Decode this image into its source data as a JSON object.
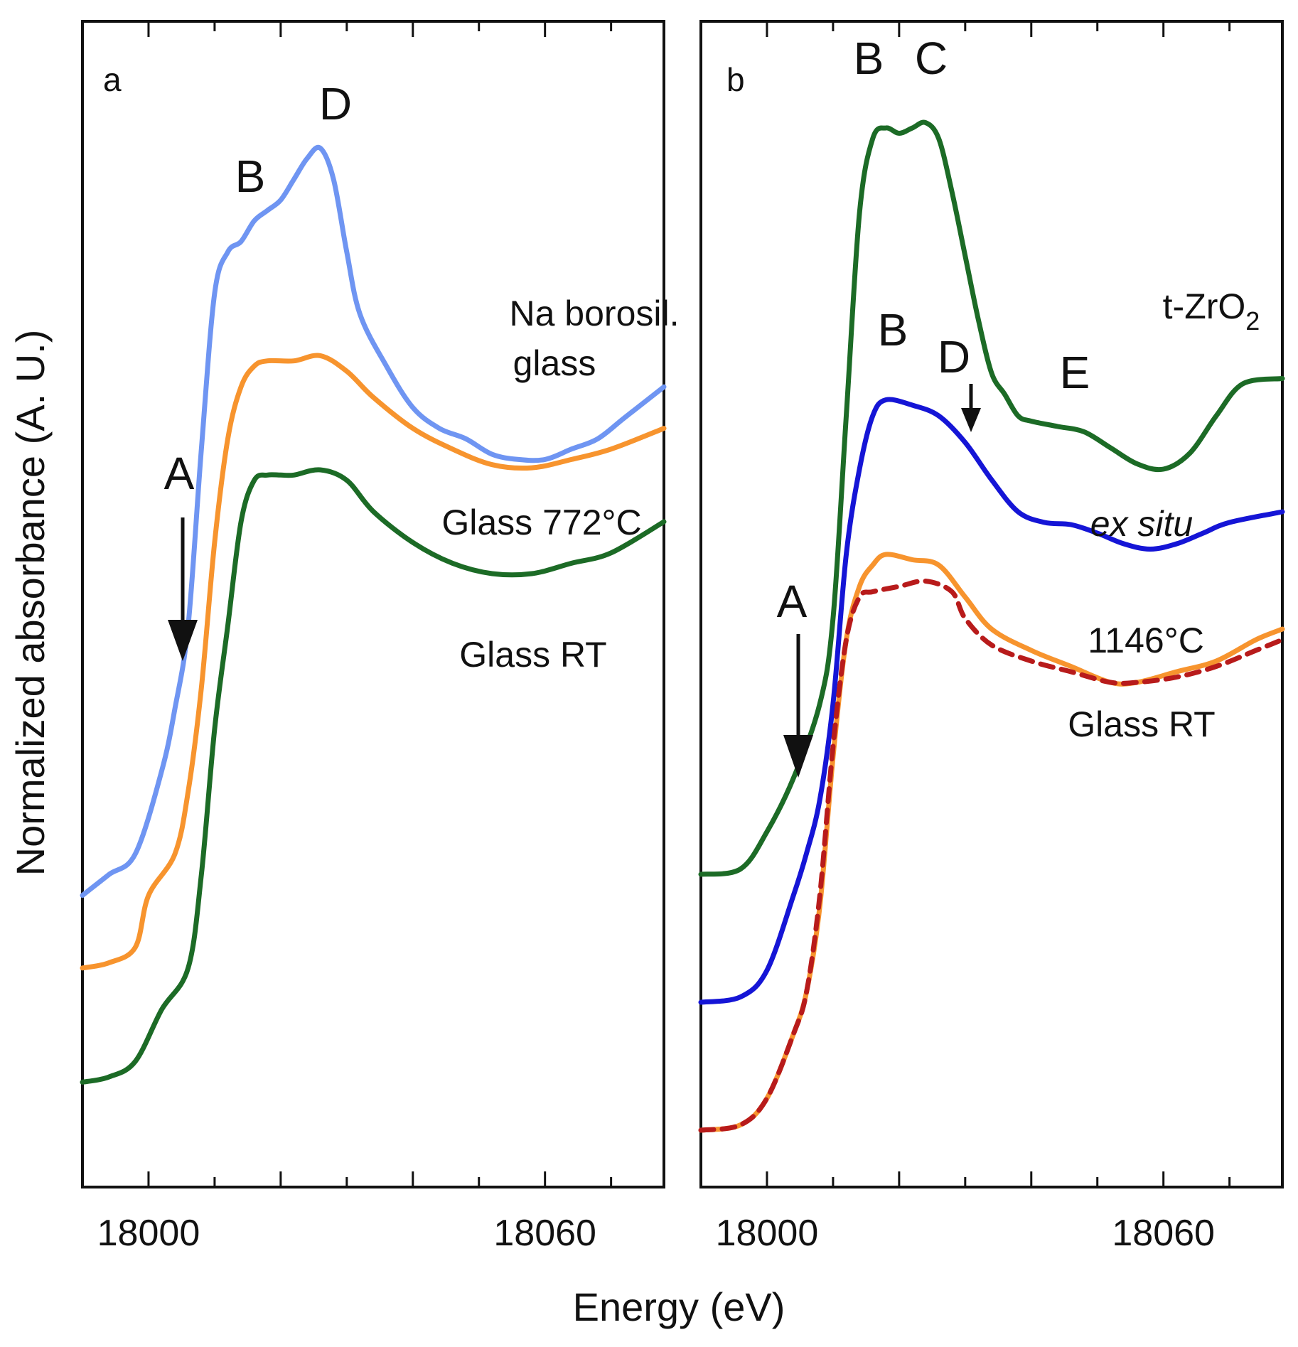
{
  "ylabel": "Normalized absorbance (A. U.)",
  "xlabel": "Energy (eV)",
  "colors": {
    "light_blue": "#6f95f2",
    "orange": "#f7942e",
    "dark_green": "#1c6b26",
    "blue": "#1515d6",
    "dashed_red": "#b81b1b"
  },
  "chart_data": [
    {
      "type": "line",
      "panel": "a",
      "title": "",
      "xlabel": "Energy (eV)",
      "ylabel": "Normalized absorbance (A. U.)",
      "xlim": [
        17990,
        18078
      ],
      "ylim": [
        0,
        1
      ],
      "xticks": [
        18000,
        18060
      ],
      "minor_tick_step": 10,
      "series": [
        {
          "name": "Na borosil. glass",
          "color": "#6f95f2",
          "style": "solid",
          "points": [
            [
              17990,
              0.24
            ],
            [
              17994,
              0.26
            ],
            [
              17998,
              0.28
            ],
            [
              18002,
              0.36
            ],
            [
              18004,
              0.42
            ],
            [
              18006,
              0.5
            ],
            [
              18008,
              0.67
            ],
            [
              18010,
              0.82
            ],
            [
              18012,
              0.86
            ],
            [
              18014,
              0.87
            ],
            [
              18016,
              0.89
            ],
            [
              18018,
              0.9
            ],
            [
              18020,
              0.91
            ],
            [
              18022,
              0.93
            ],
            [
              18024,
              0.95
            ],
            [
              18026,
              0.96
            ],
            [
              18028,
              0.93
            ],
            [
              18030,
              0.86
            ],
            [
              18032,
              0.8
            ],
            [
              18036,
              0.75
            ],
            [
              18040,
              0.71
            ],
            [
              18044,
              0.69
            ],
            [
              18048,
              0.68
            ],
            [
              18052,
              0.665
            ],
            [
              18056,
              0.66
            ],
            [
              18060,
              0.66
            ],
            [
              18064,
              0.67
            ],
            [
              18068,
              0.68
            ],
            [
              18072,
              0.7
            ],
            [
              18078,
              0.73
            ]
          ]
        },
        {
          "name": "Glass 772°C",
          "color": "#f7942e",
          "style": "solid",
          "points": [
            [
              17990,
              0.17
            ],
            [
              17994,
              0.175
            ],
            [
              17998,
              0.19
            ],
            [
              18000,
              0.24
            ],
            [
              18004,
              0.28
            ],
            [
              18006,
              0.34
            ],
            [
              18008,
              0.44
            ],
            [
              18010,
              0.58
            ],
            [
              18012,
              0.68
            ],
            [
              18014,
              0.73
            ],
            [
              18016,
              0.75
            ],
            [
              18018,
              0.755
            ],
            [
              18022,
              0.755
            ],
            [
              18026,
              0.76
            ],
            [
              18030,
              0.745
            ],
            [
              18034,
              0.72
            ],
            [
              18040,
              0.69
            ],
            [
              18046,
              0.67
            ],
            [
              18052,
              0.655
            ],
            [
              18058,
              0.652
            ],
            [
              18064,
              0.66
            ],
            [
              18070,
              0.67
            ],
            [
              18078,
              0.69
            ]
          ]
        },
        {
          "name": "Glass RT",
          "color": "#1c6b26",
          "style": "solid",
          "points": [
            [
              17990,
              0.06
            ],
            [
              17994,
              0.065
            ],
            [
              17998,
              0.08
            ],
            [
              18002,
              0.13
            ],
            [
              18006,
              0.17
            ],
            [
              18008,
              0.26
            ],
            [
              18010,
              0.4
            ],
            [
              18012,
              0.5
            ],
            [
              18014,
              0.6
            ],
            [
              18016,
              0.64
            ],
            [
              18018,
              0.645
            ],
            [
              18020,
              0.645
            ],
            [
              18022,
              0.645
            ],
            [
              18026,
              0.65
            ],
            [
              18030,
              0.64
            ],
            [
              18034,
              0.61
            ],
            [
              18040,
              0.58
            ],
            [
              18046,
              0.56
            ],
            [
              18052,
              0.55
            ],
            [
              18058,
              0.55
            ],
            [
              18064,
              0.56
            ],
            [
              18070,
              0.57
            ],
            [
              18078,
              0.6
            ]
          ]
        }
      ],
      "curve_labels": [
        {
          "text": "Na borosil.",
          "series": "Na borosil. glass"
        },
        {
          "text": "glass",
          "series": "Na borosil. glass"
        },
        {
          "text": "Glass 772°C",
          "series": "Glass 772°C"
        },
        {
          "text": "Glass RT",
          "series": "Glass RT"
        }
      ],
      "annotations": [
        {
          "text": "A",
          "energy": 18005,
          "kind": "arrow-down"
        },
        {
          "text": "B",
          "energy": 18015
        },
        {
          "text": "D",
          "energy": 18027
        }
      ]
    },
    {
      "type": "line",
      "panel": "b",
      "title": "",
      "xlabel": "Energy (eV)",
      "ylabel": "Normalized absorbance (A. U.)",
      "xlim": [
        17990,
        18078
      ],
      "ylim": [
        0,
        1
      ],
      "xticks": [
        18000,
        18060
      ],
      "minor_tick_step": 10,
      "series": [
        {
          "name": "t-ZrO2",
          "color": "#1c6b26",
          "style": "solid",
          "points": [
            [
              17990,
              0.26
            ],
            [
              17996,
              0.265
            ],
            [
              18000,
              0.3
            ],
            [
              18004,
              0.35
            ],
            [
              18008,
              0.42
            ],
            [
              18010,
              0.5
            ],
            [
              18012,
              0.69
            ],
            [
              18014,
              0.88
            ],
            [
              18016,
              0.95
            ],
            [
              18018,
              0.96
            ],
            [
              18020,
              0.955
            ],
            [
              18022,
              0.96
            ],
            [
              18024,
              0.965
            ],
            [
              18026,
              0.95
            ],
            [
              18028,
              0.9
            ],
            [
              18030,
              0.84
            ],
            [
              18032,
              0.78
            ],
            [
              18034,
              0.73
            ],
            [
              18036,
              0.71
            ],
            [
              18038,
              0.69
            ],
            [
              18040,
              0.685
            ],
            [
              18044,
              0.68
            ],
            [
              18048,
              0.675
            ],
            [
              18052,
              0.66
            ],
            [
              18056,
              0.645
            ],
            [
              18060,
              0.64
            ],
            [
              18064,
              0.655
            ],
            [
              18068,
              0.69
            ],
            [
              18072,
              0.72
            ],
            [
              18078,
              0.725
            ]
          ]
        },
        {
          "name": "ex situ",
          "color": "#1515d6",
          "style": "solid",
          "points": [
            [
              17990,
              0.14
            ],
            [
              17996,
              0.145
            ],
            [
              18000,
              0.17
            ],
            [
              18004,
              0.24
            ],
            [
              18006,
              0.28
            ],
            [
              18008,
              0.33
            ],
            [
              18010,
              0.42
            ],
            [
              18012,
              0.56
            ],
            [
              18014,
              0.64
            ],
            [
              18016,
              0.69
            ],
            [
              18018,
              0.705
            ],
            [
              18022,
              0.7
            ],
            [
              18026,
              0.69
            ],
            [
              18030,
              0.665
            ],
            [
              18034,
              0.63
            ],
            [
              18038,
              0.6
            ],
            [
              18042,
              0.59
            ],
            [
              18046,
              0.588
            ],
            [
              18050,
              0.58
            ],
            [
              18054,
              0.57
            ],
            [
              18058,
              0.565
            ],
            [
              18062,
              0.57
            ],
            [
              18066,
              0.58
            ],
            [
              18070,
              0.59
            ],
            [
              18078,
              0.6
            ]
          ]
        },
        {
          "name": "1146°C",
          "color": "#f7942e",
          "style": "solid",
          "points": [
            [
              17990,
              0.02
            ],
            [
              17996,
              0.025
            ],
            [
              18000,
              0.05
            ],
            [
              18004,
              0.11
            ],
            [
              18006,
              0.15
            ],
            [
              18008,
              0.23
            ],
            [
              18010,
              0.37
            ],
            [
              18012,
              0.48
            ],
            [
              18014,
              0.53
            ],
            [
              18016,
              0.55
            ],
            [
              18018,
              0.56
            ],
            [
              18022,
              0.555
            ],
            [
              18026,
              0.55
            ],
            [
              18030,
              0.52
            ],
            [
              18034,
              0.49
            ],
            [
              18040,
              0.47
            ],
            [
              18046,
              0.455
            ],
            [
              18052,
              0.44
            ],
            [
              18056,
              0.44
            ],
            [
              18062,
              0.45
            ],
            [
              18068,
              0.46
            ],
            [
              18074,
              0.48
            ],
            [
              18078,
              0.49
            ]
          ]
        },
        {
          "name": "Glass RT",
          "color": "#b81b1b",
          "style": "dashed",
          "points": [
            [
              17990,
              0.02
            ],
            [
              17996,
              0.025
            ],
            [
              18000,
              0.05
            ],
            [
              18004,
              0.11
            ],
            [
              18006,
              0.15
            ],
            [
              18008,
              0.24
            ],
            [
              18010,
              0.38
            ],
            [
              18012,
              0.48
            ],
            [
              18014,
              0.52
            ],
            [
              18016,
              0.525
            ],
            [
              18020,
              0.53
            ],
            [
              18024,
              0.535
            ],
            [
              18028,
              0.525
            ],
            [
              18030,
              0.5
            ],
            [
              18034,
              0.475
            ],
            [
              18040,
              0.46
            ],
            [
              18046,
              0.45
            ],
            [
              18052,
              0.44
            ],
            [
              18056,
              0.44
            ],
            [
              18062,
              0.445
            ],
            [
              18068,
              0.455
            ],
            [
              18074,
              0.47
            ],
            [
              18078,
              0.48
            ]
          ]
        }
      ],
      "curve_labels": [
        {
          "text": "t-ZrO",
          "subscript": "2",
          "series": "t-ZrO2"
        },
        {
          "text": "ex situ",
          "series": "ex situ",
          "italic": true
        },
        {
          "text": "1146°C",
          "series": "1146°C"
        },
        {
          "text": "Glass RT",
          "series": "Glass RT"
        }
      ],
      "annotations": [
        {
          "text": "A",
          "energy": 18005,
          "kind": "arrow-down"
        },
        {
          "text": "B",
          "energy": 18016
        },
        {
          "text": "C",
          "energy": 18024
        },
        {
          "text": "B",
          "energy": 18020
        },
        {
          "text": "D",
          "energy": 18032,
          "kind": "arrow-down"
        },
        {
          "text": "E",
          "energy": 18047
        }
      ]
    }
  ]
}
